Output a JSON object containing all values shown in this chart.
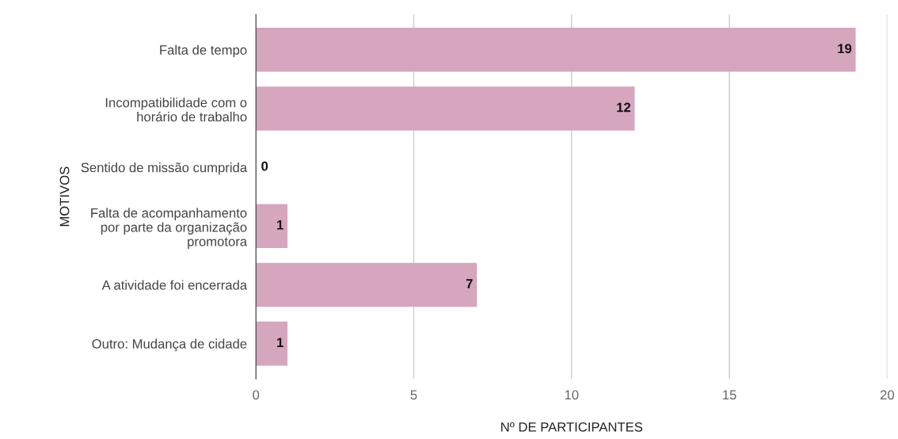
{
  "chart_data": {
    "type": "bar",
    "orientation": "horizontal",
    "xlabel": "Nº DE PARTICIPANTES",
    "ylabel": "MOTIVOS",
    "categories": [
      "Falta de tempo",
      "Incompatibilidade com o\nhorário de trabalho",
      "Sentido de missão cumprida",
      "Falta de acompanhamento\npor parte da organização\npromotora",
      "A atividade foi encerrada",
      "Outro: Mudança de cidade"
    ],
    "values": [
      19,
      12,
      0,
      1,
      7,
      1
    ],
    "color": "#d5a6bd",
    "xlim": [
      0,
      20
    ],
    "xticks": [
      0,
      5,
      10,
      15,
      20
    ],
    "grid": "x",
    "data_labels": true
  }
}
